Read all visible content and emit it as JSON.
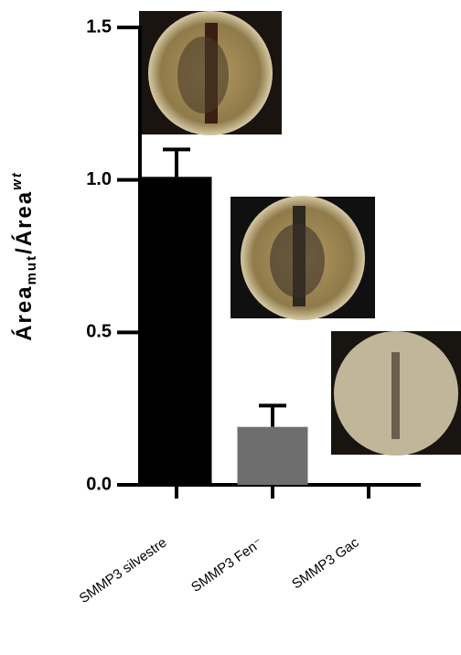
{
  "chart_data": {
    "type": "bar",
    "y_label_parts": [
      "Área",
      "mut",
      "/Área",
      "wt"
    ],
    "categories": [
      "SMMP3 silvestre",
      "SMMP3 Fen⁻",
      "SMMP3 Gac"
    ],
    "values": [
      1.01,
      0.19,
      0
    ],
    "errors": [
      0.09,
      0.07,
      0
    ],
    "colors": [
      "#000000",
      "#6e6e6e",
      "#000000"
    ],
    "ylim": [
      0,
      1.5
    ],
    "yticks": [
      {
        "value": 0,
        "label": "0.0"
      },
      0.5,
      {
        "value": 1,
        "label": "1.0"
      },
      1.5
    ]
  }
}
